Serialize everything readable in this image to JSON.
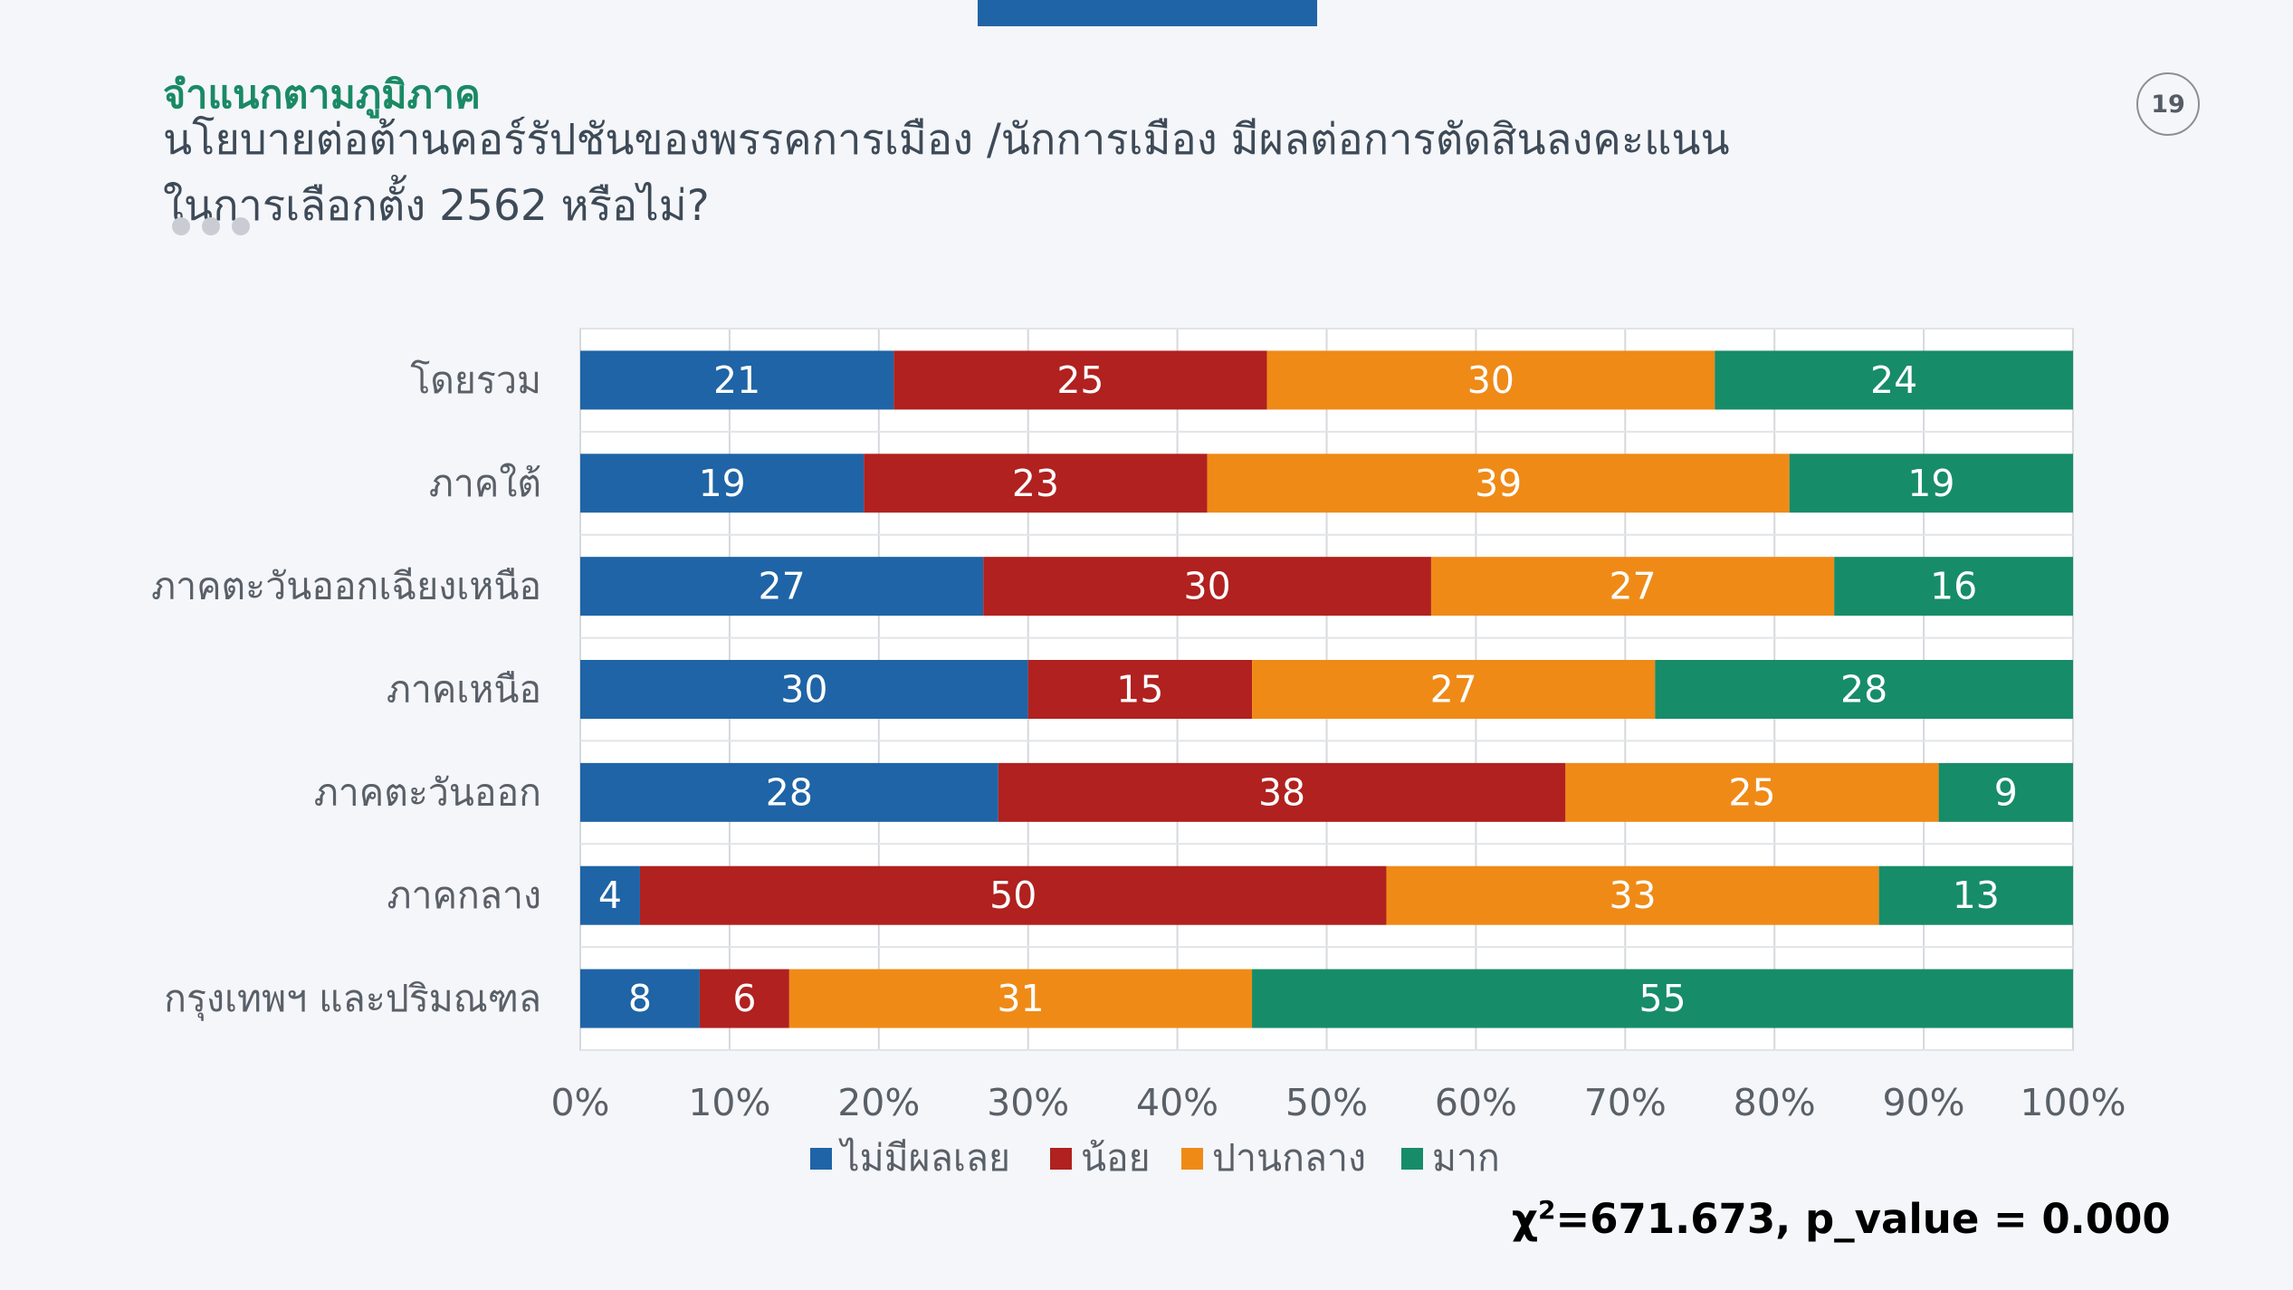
{
  "header": {
    "section_label": "จำแนกตามภูมิภาค",
    "title_line1": "นโยบายต่อต้านคอร์รัปชันของพรรคการเมือง /นักการเมือง มีผลต่อการตัดสินลงคะแนน",
    "title_line2": "ในการเลือกตั้ง 2562 หรือไม่?",
    "slide_number": "19"
  },
  "stats": {
    "chi_symbol": "χ",
    "chi_sup": "2",
    "text": "=671.673, p_value = 0.000"
  },
  "colors": {
    "series": [
      "#1f64a6",
      "#b0211f",
      "#ef8a17",
      "#178c68"
    ],
    "accent_green": "#1a8a64",
    "accent_blue": "#1f64a6"
  },
  "chart_data": {
    "type": "bar",
    "orientation": "horizontal",
    "stacked": "100%",
    "categories": [
      "โดยรวม",
      "ภาคใต้",
      "ภาคตะวันออกเฉียงเหนือ",
      "ภาคเหนือ",
      "ภาคตะวันออก",
      "ภาคกลาง",
      "กรุงเทพฯ และปริมณฑล"
    ],
    "series": [
      {
        "name": "ไม่มีผลเลย",
        "values": [
          21,
          19,
          27,
          30,
          28,
          4,
          8
        ]
      },
      {
        "name": "น้อย",
        "values": [
          25,
          23,
          30,
          15,
          38,
          50,
          6
        ]
      },
      {
        "name": "ปานกลาง",
        "values": [
          30,
          39,
          27,
          27,
          25,
          33,
          31
        ]
      },
      {
        "name": "มาก",
        "values": [
          24,
          19,
          16,
          28,
          9,
          13,
          55
        ]
      }
    ],
    "xticks": [
      "0%",
      "10%",
      "20%",
      "30%",
      "40%",
      "50%",
      "60%",
      "70%",
      "80%",
      "90%",
      "100%"
    ],
    "xlim": [
      0,
      100
    ],
    "grid": true,
    "legend_position": "bottom"
  }
}
